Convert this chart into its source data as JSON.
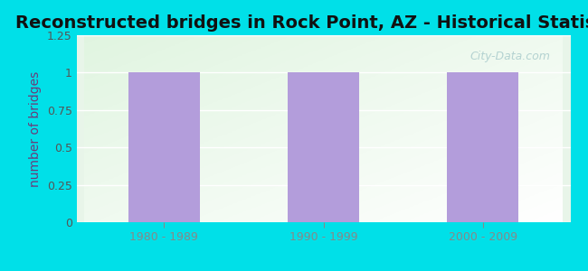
{
  "title": "Reconstructed bridges in Rock Point, AZ - Historical Statistics",
  "categories": [
    "1980 - 1989",
    "1990 - 1999",
    "2000 - 2009"
  ],
  "values": [
    1,
    1,
    1
  ],
  "bar_color": "#b39ddb",
  "ylabel": "number of bridges",
  "ylim": [
    0,
    1.25
  ],
  "yticks": [
    0,
    0.25,
    0.5,
    0.75,
    1,
    1.25
  ],
  "background_outer": "#00e0e8",
  "title_fontsize": 14,
  "ylabel_fontsize": 10,
  "tick_fontsize": 9,
  "bar_width": 0.45,
  "watermark": "City-Data.com"
}
